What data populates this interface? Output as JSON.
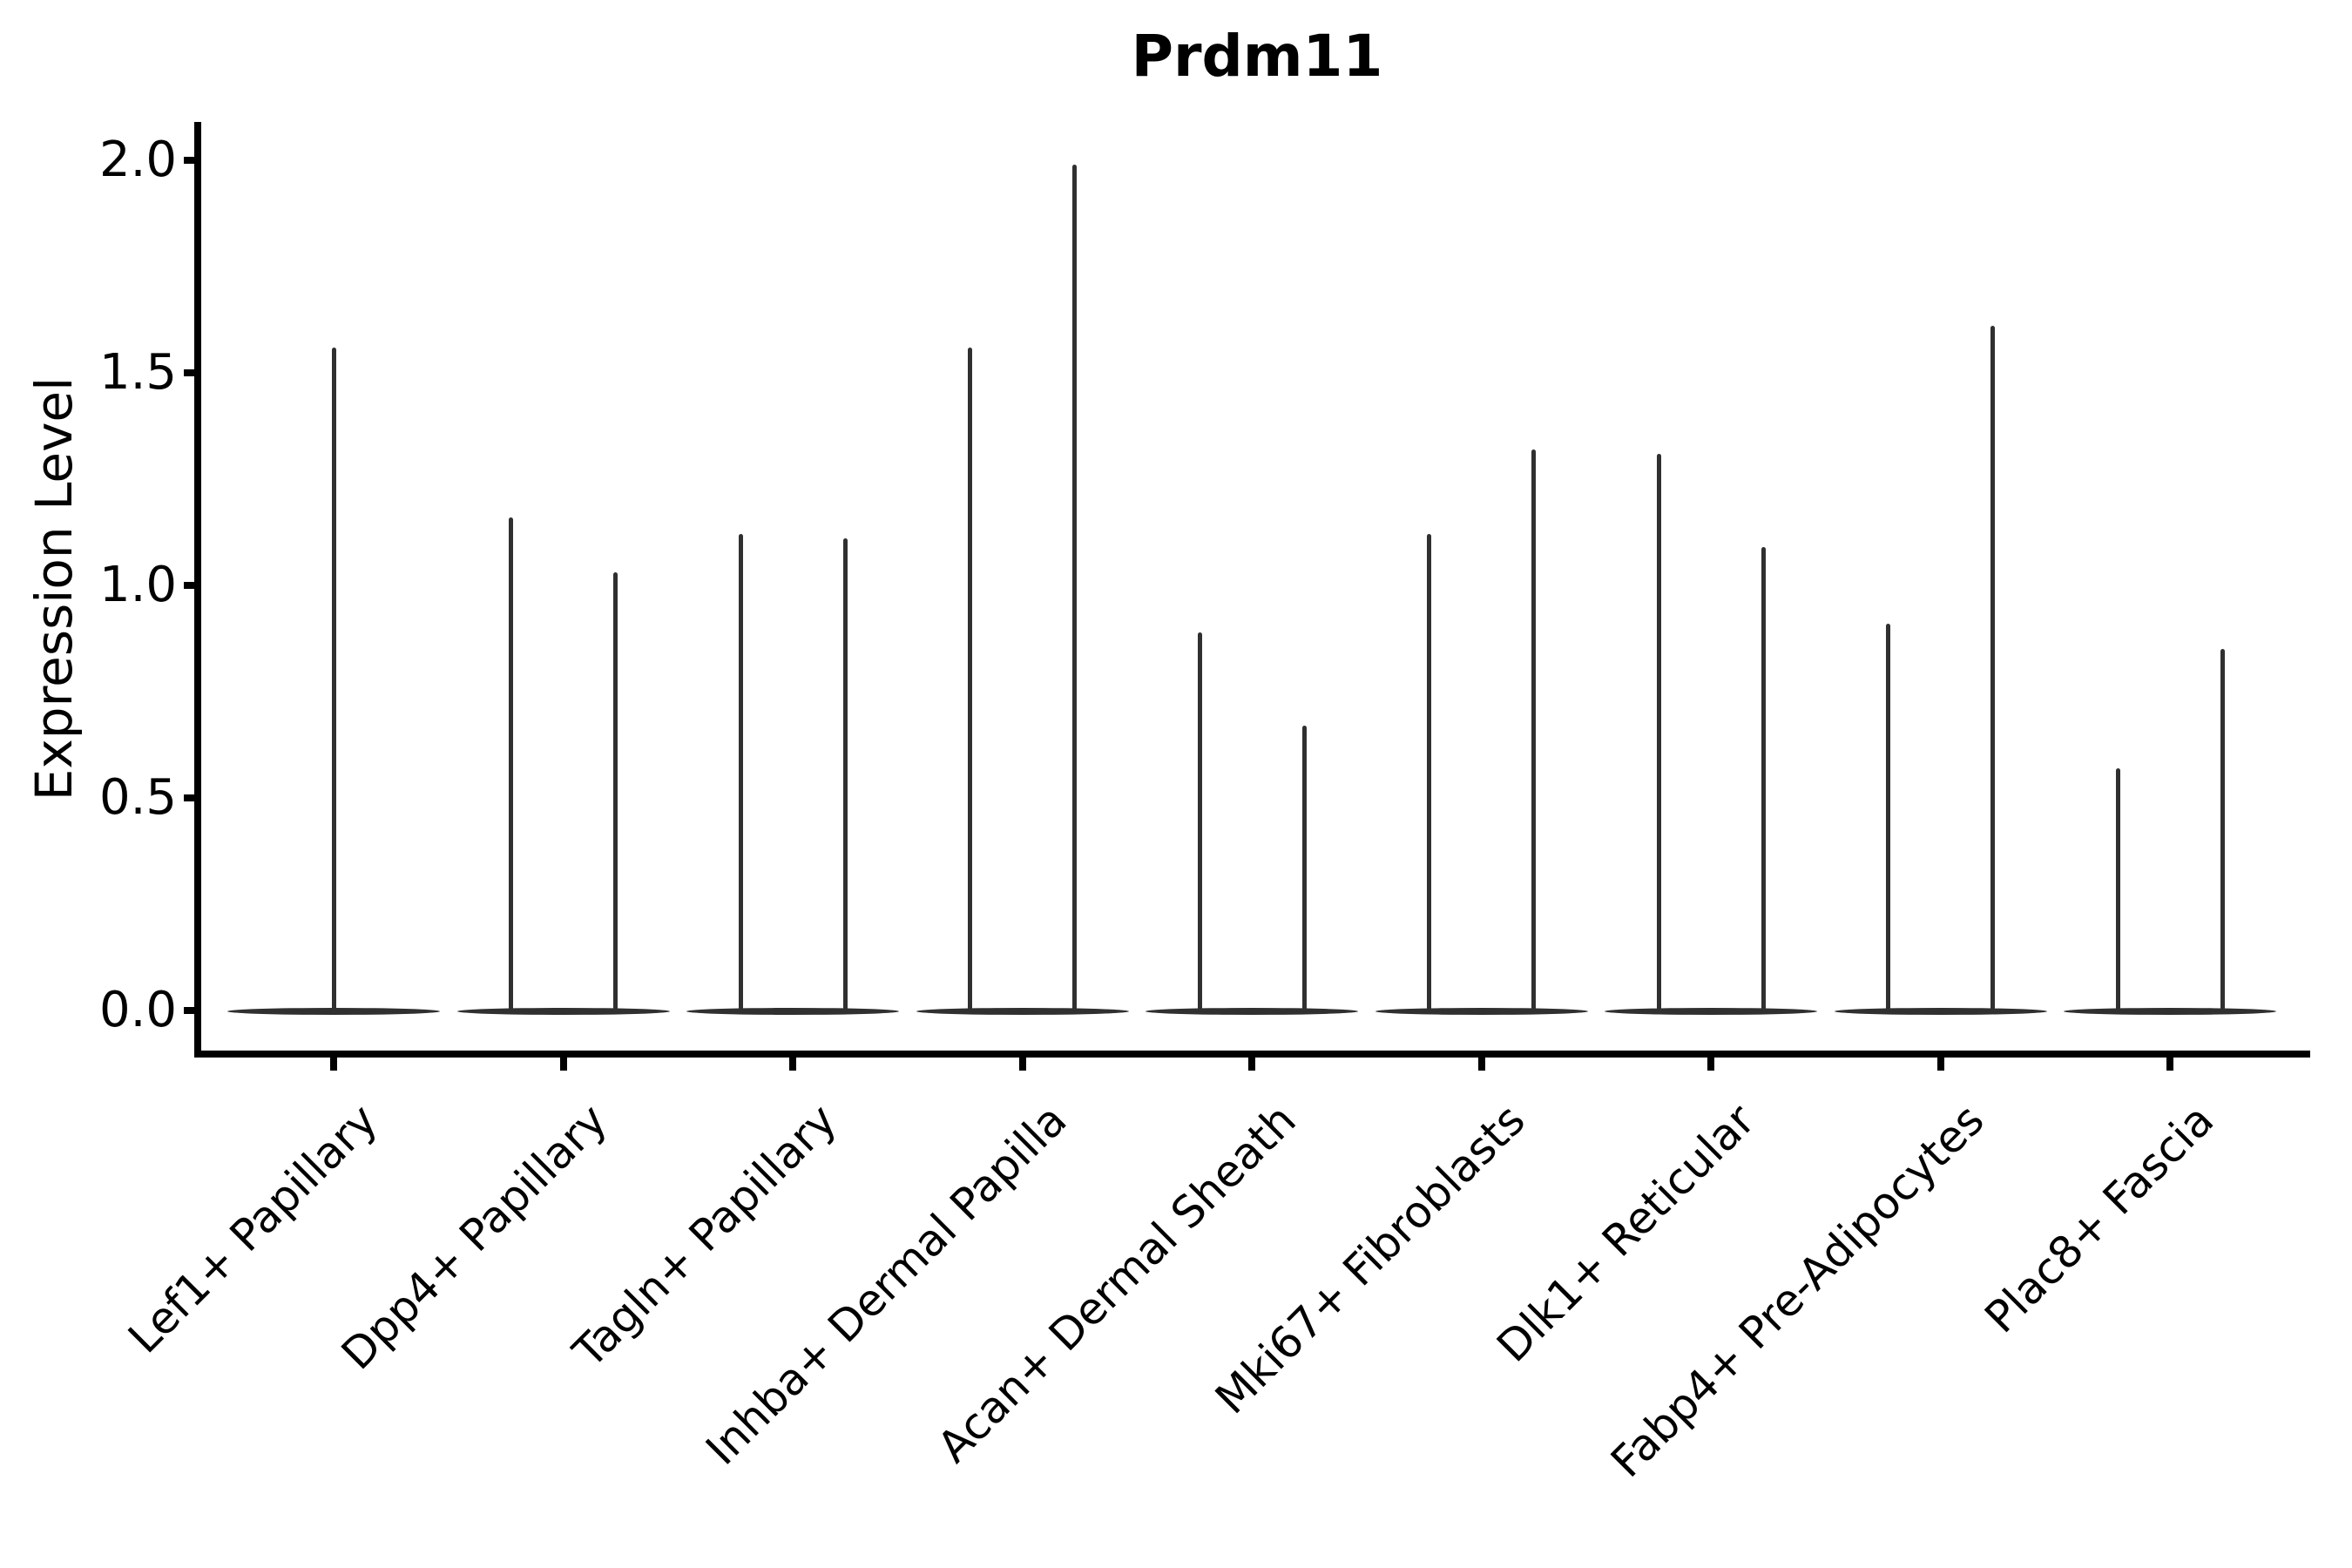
{
  "title": "Prdm11",
  "y_axis": {
    "label": "Expression Level",
    "tick_labels": [
      "0.0",
      "0.5",
      "1.0",
      "1.5",
      "2.0"
    ]
  },
  "chart_data": {
    "type": "violin",
    "title": "Prdm11",
    "xlabel": "",
    "ylabel": "Expression Level",
    "ylim": [
      -0.1,
      2.09
    ],
    "yticks": [
      0.0,
      0.5,
      1.0,
      1.5,
      2.0
    ],
    "grid": false,
    "legend": "none",
    "style_note": "Seurat-style single-gene violin plot; each cell type shows a flat density base at 0 with thin spike(s) up to the maximum expression value",
    "categories": [
      "Lef1+ Papillary",
      "Dpp4+ Papillary",
      "Tagln+ Papillary",
      "Inhba+ Dermal Papilla",
      "Acan+ Dermal Sheath",
      "Mki67+ Fibroblasts",
      "Dlk1+ Reticular",
      "Fabp4+ Pre-Adipocytes",
      "Plac8+ Fascia"
    ],
    "violins": [
      {
        "category": "Lef1+ Papillary",
        "spikes": [
          {
            "position": "center",
            "max": 1.56
          }
        ]
      },
      {
        "category": "Dpp4+ Papillary",
        "spikes": [
          {
            "position": "left",
            "max": 1.16
          },
          {
            "position": "right",
            "max": 1.03
          }
        ]
      },
      {
        "category": "Tagln+ Papillary",
        "spikes": [
          {
            "position": "left",
            "max": 1.12
          },
          {
            "position": "right",
            "max": 1.11
          }
        ]
      },
      {
        "category": "Inhba+ Dermal Papilla",
        "spikes": [
          {
            "position": "left",
            "max": 1.56
          },
          {
            "position": "right",
            "max": 1.99
          }
        ]
      },
      {
        "category": "Acan+ Dermal Sheath",
        "spikes": [
          {
            "position": "left",
            "max": 0.89
          },
          {
            "position": "right",
            "max": 0.67
          }
        ]
      },
      {
        "category": "Mki67+ Fibroblasts",
        "spikes": [
          {
            "position": "left",
            "max": 1.12
          },
          {
            "position": "right",
            "max": 1.32
          }
        ]
      },
      {
        "category": "Dlk1+ Reticular",
        "spikes": [
          {
            "position": "left",
            "max": 1.31
          },
          {
            "position": "right",
            "max": 1.09
          }
        ]
      },
      {
        "category": "Fabp4+ Pre-Adipocytes",
        "spikes": [
          {
            "position": "left",
            "max": 0.91
          },
          {
            "position": "right",
            "max": 1.61
          }
        ]
      },
      {
        "category": "Plac8+ Fascia",
        "spikes": [
          {
            "position": "left",
            "max": 0.57
          },
          {
            "position": "right",
            "max": 0.85
          }
        ]
      }
    ]
  },
  "colors": {
    "violin": "#303030",
    "axis": "#000000",
    "text": "#000000",
    "background": "#ffffff"
  }
}
